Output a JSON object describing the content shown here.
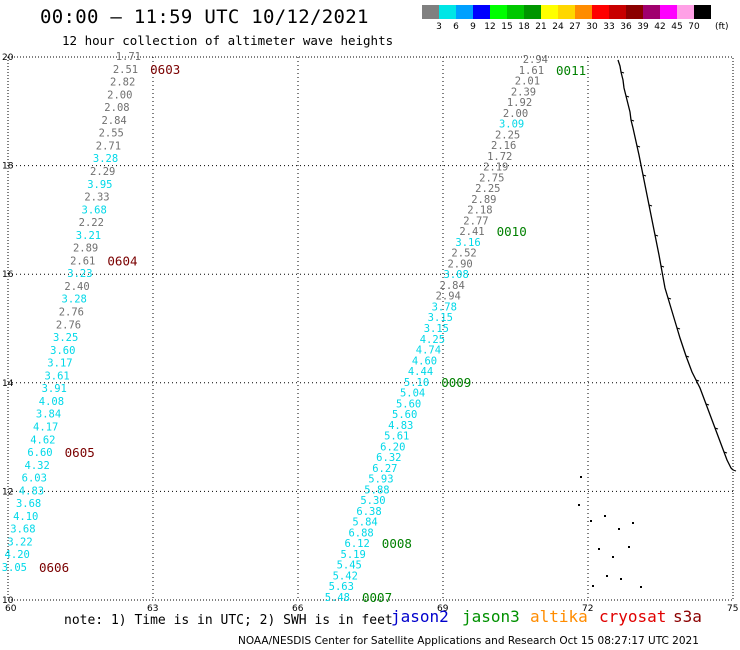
{
  "header": {
    "title": "00:00 — 11:59 UTC 10/12/2021",
    "subtitle": "12 hour collection of altimeter wave heights"
  },
  "legend": {
    "swatches": [
      {
        "color": "#808080",
        "label": "3"
      },
      {
        "color": "#00e6e6",
        "label": "6"
      },
      {
        "color": "#00a0ff",
        "label": "9"
      },
      {
        "color": "#0000ff",
        "label": "12"
      },
      {
        "color": "#00ff00",
        "label": "15"
      },
      {
        "color": "#00c800",
        "label": "18"
      },
      {
        "color": "#009600",
        "label": "21"
      },
      {
        "color": "#ffff00",
        "label": "24"
      },
      {
        "color": "#ffd700",
        "label": "27"
      },
      {
        "color": "#ff8c00",
        "label": "30"
      },
      {
        "color": "#ff0000",
        "label": "33"
      },
      {
        "color": "#c80000",
        "label": "36"
      },
      {
        "color": "#8b0000",
        "label": "39"
      },
      {
        "color": "#a0006e",
        "label": "42"
      },
      {
        "color": "#ff00ff",
        "label": "45"
      },
      {
        "color": "#ffa0e6",
        "label": "70"
      },
      {
        "color": "#000000",
        "label": ""
      }
    ],
    "unit": "(ft)"
  },
  "axes": {
    "x_ticks": [
      "60",
      "63",
      "66",
      "69",
      "72",
      "75"
    ],
    "y_ticks": [
      "10",
      "12",
      "14",
      "16",
      "18",
      "20"
    ]
  },
  "colors": {
    "gray": "#707070",
    "cyan": "#00d8e8",
    "darkred": "#7a0000",
    "green": "#008000"
  },
  "tracks": [
    {
      "id": "left",
      "values": [
        {
          "v": "1.71",
          "c": "gray"
        },
        {
          "v": "2.51",
          "c": "gray"
        },
        {
          "v": "2.82",
          "c": "gray"
        },
        {
          "v": "2.00",
          "c": "gray"
        },
        {
          "v": "2.08",
          "c": "gray"
        },
        {
          "v": "2.84",
          "c": "gray"
        },
        {
          "v": "2.55",
          "c": "gray"
        },
        {
          "v": "2.71",
          "c": "gray"
        },
        {
          "v": "3.28",
          "c": "cyan"
        },
        {
          "v": "2.29",
          "c": "gray"
        },
        {
          "v": "3.95",
          "c": "cyan"
        },
        {
          "v": "2.33",
          "c": "gray"
        },
        {
          "v": "3.68",
          "c": "cyan"
        },
        {
          "v": "2.22",
          "c": "gray"
        },
        {
          "v": "3.21",
          "c": "cyan"
        },
        {
          "v": "2.89",
          "c": "gray"
        },
        {
          "v": "2.61",
          "c": "gray"
        },
        {
          "v": "3.23",
          "c": "cyan"
        },
        {
          "v": "2.40",
          "c": "gray"
        },
        {
          "v": "3.28",
          "c": "cyan"
        },
        {
          "v": "2.76",
          "c": "gray"
        },
        {
          "v": "2.76",
          "c": "gray"
        },
        {
          "v": "3.25",
          "c": "cyan"
        },
        {
          "v": "3.60",
          "c": "cyan"
        },
        {
          "v": "3.17",
          "c": "cyan"
        },
        {
          "v": "3.61",
          "c": "cyan"
        },
        {
          "v": "3.91",
          "c": "cyan"
        },
        {
          "v": "4.08",
          "c": "cyan"
        },
        {
          "v": "3.84",
          "c": "cyan"
        },
        {
          "v": "4.17",
          "c": "cyan"
        },
        {
          "v": "4.62",
          "c": "cyan"
        },
        {
          "v": "6.60",
          "c": "cyan"
        },
        {
          "v": "4.32",
          "c": "cyan"
        },
        {
          "v": "6.03",
          "c": "cyan"
        },
        {
          "v": "4.83",
          "c": "cyan"
        },
        {
          "v": "3.68",
          "c": "cyan"
        },
        {
          "v": "4.10",
          "c": "cyan"
        },
        {
          "v": "3.68",
          "c": "cyan"
        },
        {
          "v": "3.22",
          "c": "cyan"
        },
        {
          "v": "4.20",
          "c": "cyan"
        },
        {
          "v": "3.05",
          "c": "cyan"
        }
      ],
      "times": [
        {
          "t": "0603",
          "after": 1
        },
        {
          "t": "0604",
          "after": 16
        },
        {
          "t": "0605",
          "after": 31
        },
        {
          "t": "0606",
          "after": 40
        }
      ]
    },
    {
      "id": "right",
      "values": [
        {
          "v": "2.94",
          "c": "gray"
        },
        {
          "v": "1.61",
          "c": "gray"
        },
        {
          "v": "2.01",
          "c": "gray"
        },
        {
          "v": "2.39",
          "c": "gray"
        },
        {
          "v": "1.92",
          "c": "gray"
        },
        {
          "v": "2.00",
          "c": "gray"
        },
        {
          "v": "3.09",
          "c": "cyan"
        },
        {
          "v": "2.25",
          "c": "gray"
        },
        {
          "v": "2.16",
          "c": "gray"
        },
        {
          "v": "1.72",
          "c": "gray"
        },
        {
          "v": "2.19",
          "c": "gray"
        },
        {
          "v": "2.75",
          "c": "gray"
        },
        {
          "v": "2.25",
          "c": "gray"
        },
        {
          "v": "2.89",
          "c": "gray"
        },
        {
          "v": "2.18",
          "c": "gray"
        },
        {
          "v": "2.77",
          "c": "gray"
        },
        {
          "v": "2.41",
          "c": "gray"
        },
        {
          "v": "3.16",
          "c": "cyan"
        },
        {
          "v": "2.52",
          "c": "gray"
        },
        {
          "v": "2.90",
          "c": "gray"
        },
        {
          "v": "3.08",
          "c": "cyan"
        },
        {
          "v": "2.84",
          "c": "gray"
        },
        {
          "v": "2.94",
          "c": "gray"
        },
        {
          "v": "3.78",
          "c": "cyan"
        },
        {
          "v": "3.15",
          "c": "cyan"
        },
        {
          "v": "3.15",
          "c": "cyan"
        },
        {
          "v": "4.25",
          "c": "cyan"
        },
        {
          "v": "4.74",
          "c": "cyan"
        },
        {
          "v": "4.60",
          "c": "cyan"
        },
        {
          "v": "4.44",
          "c": "cyan"
        },
        {
          "v": "5.10",
          "c": "cyan"
        },
        {
          "v": "5.04",
          "c": "cyan"
        },
        {
          "v": "5.60",
          "c": "cyan"
        },
        {
          "v": "5.60",
          "c": "cyan"
        },
        {
          "v": "4.83",
          "c": "cyan"
        },
        {
          "v": "5.61",
          "c": "cyan"
        },
        {
          "v": "6.20",
          "c": "cyan"
        },
        {
          "v": "6.32",
          "c": "cyan"
        },
        {
          "v": "6.27",
          "c": "cyan"
        },
        {
          "v": "5.93",
          "c": "cyan"
        },
        {
          "v": "5.88",
          "c": "cyan"
        },
        {
          "v": "5.30",
          "c": "cyan"
        },
        {
          "v": "6.38",
          "c": "cyan"
        },
        {
          "v": "5.84",
          "c": "cyan"
        },
        {
          "v": "6.88",
          "c": "cyan"
        },
        {
          "v": "6.12",
          "c": "cyan"
        },
        {
          "v": "5.19",
          "c": "cyan"
        },
        {
          "v": "5.45",
          "c": "cyan"
        },
        {
          "v": "5.42",
          "c": "cyan"
        },
        {
          "v": "5.63",
          "c": "cyan"
        },
        {
          "v": "5.48",
          "c": "cyan"
        }
      ],
      "times": [
        {
          "t": "0011",
          "after": 1
        },
        {
          "t": "0010",
          "after": 16
        },
        {
          "t": "0009",
          "after": 30
        },
        {
          "t": "0008",
          "after": 45
        },
        {
          "t": "0007",
          "after": 50
        }
      ]
    }
  ],
  "footer": {
    "note": "note: 1) Time is in UTC; 2) SWH is in feet",
    "satellites": [
      {
        "name": "jason2",
        "color": "#0000cc"
      },
      {
        "name": "jason3",
        "color": "#009000"
      },
      {
        "name": "altika",
        "color": "#ff8c00"
      },
      {
        "name": "cryosat",
        "color": "#e00000"
      },
      {
        "name": "s3a",
        "color": "#8b0000"
      }
    ],
    "credit": "NOAA/NESDIS Center for Satellite Applications and Research   Oct 15 08:27:17 UTC 2021"
  }
}
